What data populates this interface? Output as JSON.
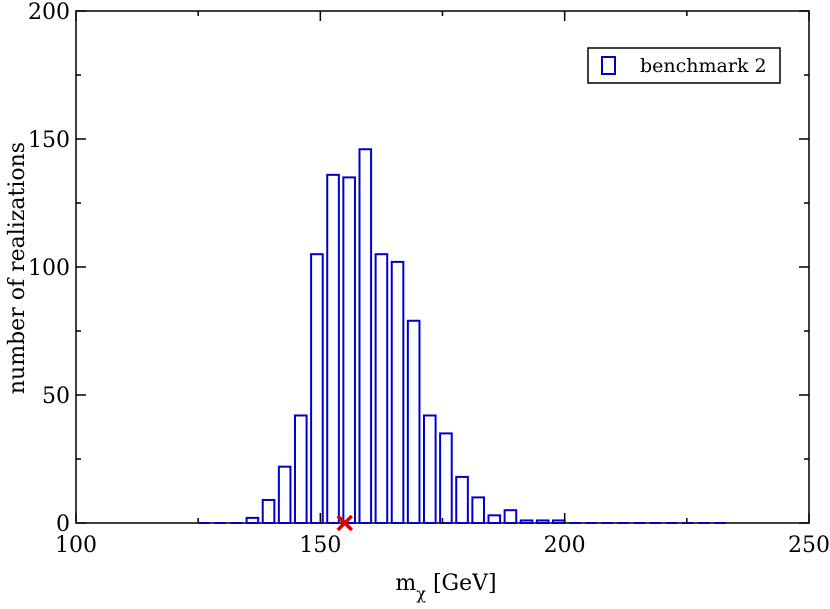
{
  "chart_data": {
    "type": "bar",
    "xlabel": {
      "main": "m",
      "sub": "χ",
      "unit": " [GeV]"
    },
    "ylabel": "number of realizations",
    "xlim": [
      100,
      250
    ],
    "ylim": [
      0,
      200
    ],
    "xticks": [
      100,
      150,
      200,
      250
    ],
    "yticks": [
      0,
      50,
      100,
      150,
      200
    ],
    "bin_width": 3.3,
    "bar_fraction": 0.72,
    "grid": false,
    "legend_position": "top-right",
    "series": [
      {
        "name": "benchmark 2",
        "color": "#0000cc",
        "x": [
          126.2,
          129.5,
          132.8,
          136.1,
          139.4,
          142.7,
          146.0,
          149.3,
          152.6,
          155.9,
          159.2,
          162.5,
          165.8,
          169.1,
          172.4,
          175.7,
          179.0,
          182.3,
          185.6,
          188.9,
          192.2,
          195.5,
          198.8,
          202.1,
          205.4,
          208.7,
          212.0,
          215.3,
          218.6,
          221.9,
          225.2,
          228.5,
          231.8
        ],
        "values": [
          0,
          0,
          0,
          2,
          9,
          22,
          42,
          105,
          136,
          135,
          146,
          105,
          102,
          79,
          42,
          35,
          18,
          10,
          3,
          5,
          1,
          1,
          1,
          0,
          0,
          0,
          0,
          0,
          0,
          0,
          0,
          0,
          0
        ]
      }
    ],
    "marker": {
      "x": 155,
      "y": 0,
      "symbol": "x",
      "color": "#dd0000"
    }
  }
}
